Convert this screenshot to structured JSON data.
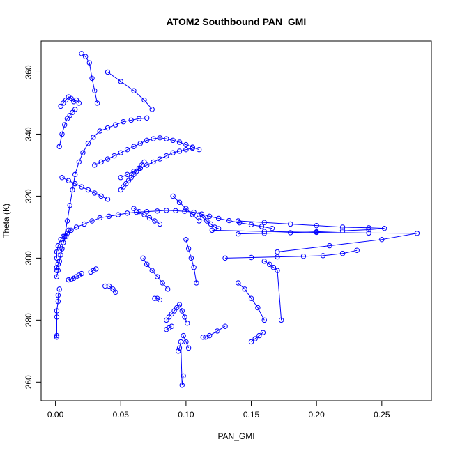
{
  "chart_data": {
    "type": "scatter",
    "title": "ATOM2 Southbound PAN_GMI",
    "xlabel": "PAN_GMI",
    "ylabel": "Theta (K)",
    "xlim": [
      -0.011,
      0.288
    ],
    "ylim": [
      254,
      370
    ],
    "xticks": [
      0.0,
      0.05,
      0.1,
      0.15,
      0.2,
      0.25
    ],
    "xtick_labels": [
      "0.00",
      "0.05",
      "0.10",
      "0.15",
      "0.20",
      "0.25"
    ],
    "yticks": [
      260,
      280,
      300,
      320,
      340,
      360
    ],
    "ytick_labels": [
      "260",
      "280",
      "300",
      "320",
      "340",
      "360"
    ],
    "grid": false,
    "legend": "none",
    "series_color": "#0000ff",
    "series": [
      {
        "x": [
          0.001,
          0.001,
          0.002,
          0.004,
          0.006,
          0.009,
          0.012,
          0.016,
          0.022,
          0.028,
          0.034,
          0.041,
          0.048,
          0.055,
          0.062,
          0.07,
          0.078,
          0.085,
          0.092,
          0.099,
          0.106,
          0.112,
          0.118,
          0.125,
          0.133,
          0.141,
          0.15,
          0.158,
          0.166
        ],
        "y": [
          300,
          302,
          304,
          306,
          307,
          308,
          309,
          310,
          311,
          312,
          313,
          313.5,
          314,
          314.5,
          314.8,
          315,
          315.2,
          315.4,
          315.3,
          315.1,
          314.8,
          314.2,
          313.5,
          312.8,
          312.1,
          311.4,
          310.8,
          310.2,
          309.6
        ]
      },
      {
        "x": [
          0.001,
          0.002,
          0.003,
          0.005,
          0.007,
          0.009,
          0.011,
          0.013,
          0.015,
          0.018,
          0.021,
          0.025,
          0.029,
          0.034,
          0.04,
          0.046,
          0.052,
          0.058,
          0.064,
          0.07
        ],
        "y": [
          294,
          296,
          299,
          303,
          307,
          312,
          317,
          322,
          327,
          331,
          334,
          337,
          339,
          341,
          342,
          343,
          344,
          344.5,
          345,
          345.2
        ]
      },
      {
        "x": [
          0.003,
          0.005,
          0.007,
          0.009,
          0.011,
          0.013,
          0.015
        ],
        "y": [
          336,
          340,
          343,
          345,
          346,
          347,
          348
        ]
      },
      {
        "x": [
          0.004,
          0.006,
          0.008,
          0.01,
          0.012,
          0.014,
          0.016,
          0.018
        ],
        "y": [
          349,
          350,
          351,
          352,
          351.5,
          350.5,
          351,
          350
        ]
      },
      {
        "x": [
          0.02,
          0.023,
          0.026,
          0.028,
          0.03,
          0.032
        ],
        "y": [
          366,
          365,
          363,
          358,
          354,
          350
        ]
      },
      {
        "x": [
          0.04,
          0.05,
          0.06,
          0.068,
          0.074
        ],
        "y": [
          360,
          357,
          354,
          351,
          348
        ]
      },
      {
        "x": [
          0.03,
          0.035,
          0.04,
          0.045,
          0.05,
          0.055,
          0.06,
          0.065,
          0.07,
          0.075,
          0.08,
          0.085,
          0.09,
          0.095,
          0.1,
          0.105,
          0.11
        ],
        "y": [
          330,
          331,
          332,
          333,
          334,
          335,
          336,
          337,
          338,
          338.5,
          338.8,
          338.5,
          338,
          337.4,
          336.6,
          335.8,
          335
        ]
      },
      {
        "x": [
          0.05,
          0.055,
          0.06,
          0.065,
          0.07,
          0.075,
          0.08,
          0.085,
          0.09,
          0.095,
          0.1,
          0.105
        ],
        "y": [
          326,
          327,
          328,
          329,
          330,
          331,
          332,
          333,
          334,
          334.5,
          335,
          335.5
        ]
      },
      {
        "x": [
          0.05,
          0.052,
          0.054,
          0.056,
          0.058,
          0.06,
          0.062,
          0.064,
          0.066,
          0.068
        ],
        "y": [
          322,
          323,
          324,
          325,
          326,
          327,
          328,
          329,
          330,
          331
        ]
      },
      {
        "x": [
          0.14,
          0.16,
          0.18,
          0.2,
          0.22,
          0.24,
          0.252,
          0.24,
          0.22,
          0.2,
          0.18,
          0.16,
          0.14
        ],
        "y": [
          312,
          311.5,
          311,
          310.5,
          310,
          309.8,
          309.6,
          309.2,
          308.8,
          308.5,
          308.2,
          308,
          307.8
        ]
      },
      {
        "x": [
          0.12,
          0.16,
          0.2,
          0.24,
          0.277,
          0.25,
          0.21,
          0.17
        ],
        "y": [
          309,
          308.6,
          308.3,
          308.1,
          308,
          306,
          304,
          302
        ]
      },
      {
        "x": [
          0.13,
          0.15,
          0.17,
          0.19,
          0.205,
          0.22,
          0.231
        ],
        "y": [
          300,
          300.2,
          300.4,
          300.6,
          300.8,
          301.5,
          302.5
        ]
      },
      {
        "x": [
          0.16,
          0.164,
          0.167,
          0.17,
          0.173
        ],
        "y": [
          299,
          298,
          297,
          296,
          280
        ]
      },
      {
        "x": [
          0.14,
          0.145,
          0.15,
          0.155,
          0.16
        ],
        "y": [
          292,
          290,
          287,
          284,
          280
        ]
      },
      {
        "x": [
          0.15,
          0.153,
          0.156,
          0.159
        ],
        "y": [
          273,
          274,
          275,
          276
        ]
      },
      {
        "x": [
          0.113,
          0.115,
          0.118,
          0.124,
          0.13
        ],
        "y": [
          274.5,
          274.5,
          275,
          276.5,
          278
        ]
      },
      {
        "x": [
          0.085,
          0.087,
          0.089,
          0.091,
          0.093,
          0.095,
          0.097,
          0.099,
          0.101
        ],
        "y": [
          280,
          281,
          282,
          283,
          284,
          285,
          283,
          281,
          279
        ]
      },
      {
        "x": [
          0.094,
          0.095,
          0.096,
          0.097,
          0.098
        ],
        "y": [
          270,
          271,
          273,
          259,
          262
        ]
      },
      {
        "x": [
          0.098,
          0.1,
          0.102
        ],
        "y": [
          275,
          273,
          271
        ]
      },
      {
        "x": [
          0.076,
          0.078,
          0.08
        ],
        "y": [
          287,
          287,
          286.5
        ]
      },
      {
        "x": [
          0.085,
          0.087,
          0.089
        ],
        "y": [
          277,
          277.5,
          278
        ]
      },
      {
        "x": [
          0.038,
          0.041,
          0.044,
          0.046
        ],
        "y": [
          291,
          291,
          290,
          289
        ]
      },
      {
        "x": [
          0.027,
          0.029,
          0.031
        ],
        "y": [
          295.5,
          296,
          296.5
        ]
      },
      {
        "x": [
          0.001,
          0.001,
          0.001,
          0.001,
          0.002,
          0.002,
          0.003
        ],
        "y": [
          274.5,
          275,
          281,
          283,
          286,
          288,
          290
        ]
      },
      {
        "x": [
          0.001,
          0.001,
          0.002,
          0.003,
          0.004,
          0.005,
          0.006,
          0.008,
          0.01
        ],
        "y": [
          296,
          297,
          298,
          299,
          301,
          303,
          305,
          307,
          309
        ]
      },
      {
        "x": [
          0.01,
          0.012,
          0.014,
          0.016,
          0.018,
          0.02
        ],
        "y": [
          293,
          293.2,
          293.5,
          294,
          294.5,
          295
        ]
      },
      {
        "x": [
          0.1,
          0.102,
          0.104,
          0.106,
          0.108
        ],
        "y": [
          306,
          303,
          300,
          297,
          292
        ]
      },
      {
        "x": [
          0.11,
          0.113,
          0.116,
          0.119,
          0.122,
          0.125
        ],
        "y": [
          314,
          313,
          312,
          311,
          310,
          309.5
        ]
      },
      {
        "x": [
          0.06,
          0.064,
          0.068,
          0.072,
          0.076,
          0.08
        ],
        "y": [
          316,
          315,
          314,
          313,
          312,
          311
        ]
      },
      {
        "x": [
          0.005,
          0.01,
          0.015,
          0.02,
          0.025,
          0.03,
          0.035,
          0.04
        ],
        "y": [
          326,
          325,
          324,
          323,
          322,
          321,
          320,
          319
        ]
      },
      {
        "x": [
          0.09,
          0.095,
          0.1,
          0.105,
          0.11
        ],
        "y": [
          320,
          318,
          316,
          314,
          312
        ]
      },
      {
        "x": [
          0.067,
          0.07,
          0.074,
          0.078,
          0.082,
          0.086
        ],
        "y": [
          300,
          298,
          296,
          294,
          292,
          290
        ]
      }
    ]
  }
}
